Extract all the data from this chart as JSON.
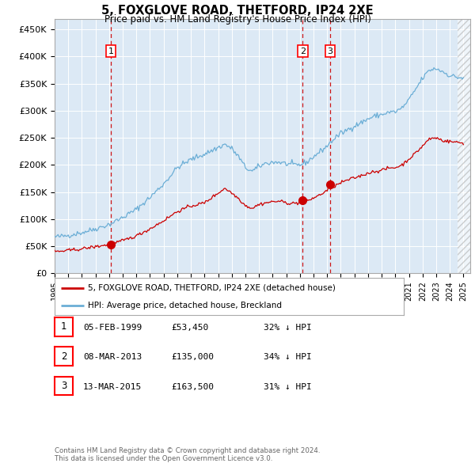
{
  "title": "5, FOXGLOVE ROAD, THETFORD, IP24 2XE",
  "subtitle": "Price paid vs. HM Land Registry's House Price Index (HPI)",
  "legend_line1": "5, FOXGLOVE ROAD, THETFORD, IP24 2XE (detached house)",
  "legend_line2": "HPI: Average price, detached house, Breckland",
  "footer": "Contains HM Land Registry data © Crown copyright and database right 2024.\nThis data is licensed under the Open Government Licence v3.0.",
  "transactions": [
    {
      "num": 1,
      "date": "05-FEB-1999",
      "price": "£53,450",
      "hpi": "32% ↓ HPI",
      "year": 1999.12,
      "value": 53450
    },
    {
      "num": 2,
      "date": "08-MAR-2013",
      "price": "£135,000",
      "hpi": "34% ↓ HPI",
      "year": 2013.21,
      "value": 135000
    },
    {
      "num": 3,
      "date": "13-MAR-2015",
      "price": "£163,500",
      "hpi": "31% ↓ HPI",
      "year": 2015.21,
      "value": 163500
    }
  ],
  "hpi_color": "#6baed6",
  "price_color": "#cc0000",
  "dashed_color": "#cc0000",
  "plot_bg": "#dce9f5",
  "ylim": [
    0,
    470000
  ],
  "xlim": [
    1995.0,
    2025.5
  ],
  "yticks": [
    0,
    50000,
    100000,
    150000,
    200000,
    250000,
    300000,
    350000,
    400000,
    450000
  ],
  "ytick_labels": [
    "£0",
    "£50K",
    "£100K",
    "£150K",
    "£200K",
    "£250K",
    "£300K",
    "£350K",
    "£400K",
    "£450K"
  ]
}
